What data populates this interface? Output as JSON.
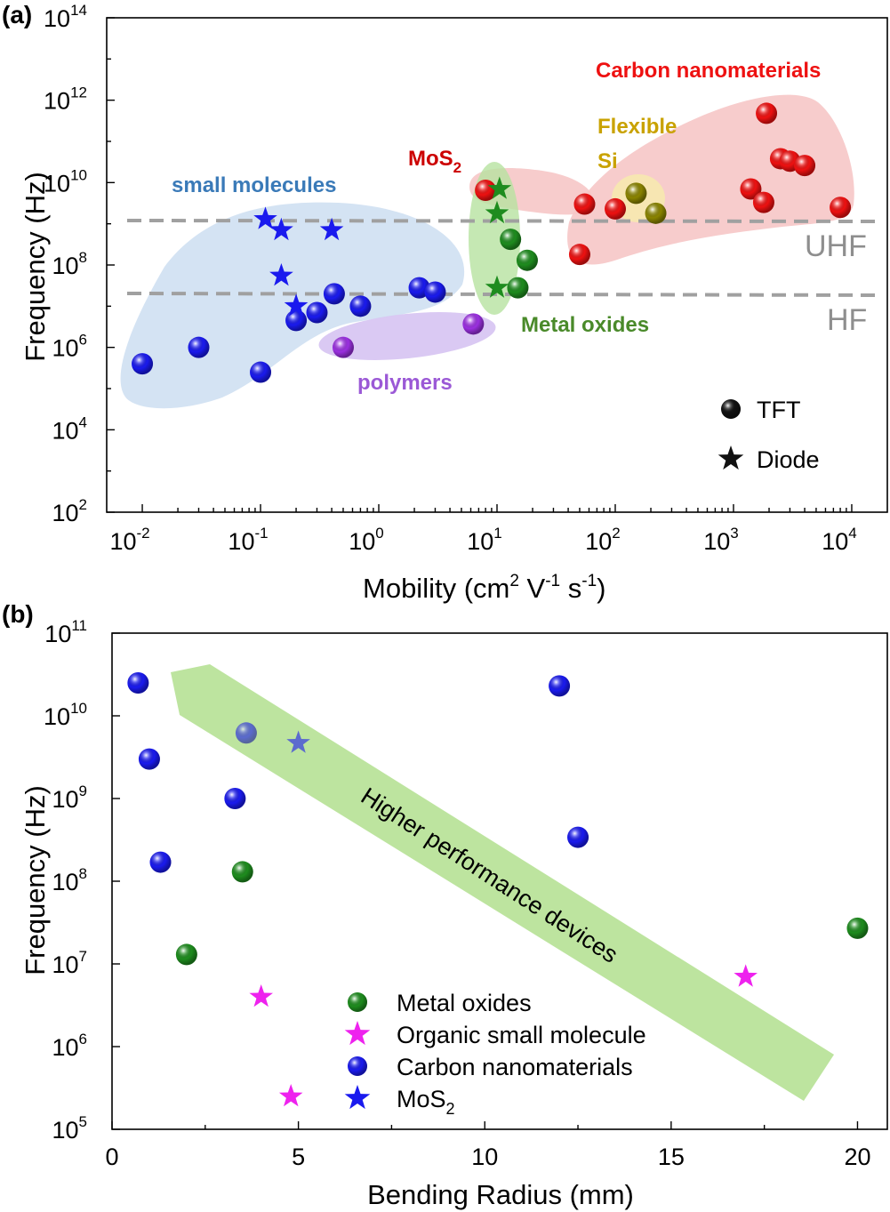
{
  "figure": {
    "panel_a_label": "(a)",
    "panel_b_label": "(b)"
  },
  "chart_data": [
    {
      "type": "scatter",
      "panel": "(a)",
      "xlabel": "Mobility (cm² V⁻¹ s⁻¹)",
      "ylabel": "Frequency (Hz)",
      "xscale": "log",
      "yscale": "log",
      "xlim": [
        0.005,
        20000
      ],
      "ylim": [
        100,
        100000000000000
      ],
      "x_ticks": [
        {
          "base": "10",
          "exp": "-2",
          "value": 0.01
        },
        {
          "base": "10",
          "exp": "-1",
          "value": 0.1
        },
        {
          "base": "10",
          "exp": "0",
          "value": 1
        },
        {
          "base": "10",
          "exp": "1",
          "value": 10
        },
        {
          "base": "10",
          "exp": "2",
          "value": 100
        },
        {
          "base": "10",
          "exp": "3",
          "value": 1000
        },
        {
          "base": "10",
          "exp": "4",
          "value": 10000
        }
      ],
      "y_ticks": [
        {
          "base": "10",
          "exp": "2",
          "value": 100
        },
        {
          "base": "10",
          "exp": "4",
          "value": 10000
        },
        {
          "base": "10",
          "exp": "6",
          "value": 1000000
        },
        {
          "base": "10",
          "exp": "8",
          "value": 100000000
        },
        {
          "base": "10",
          "exp": "10",
          "value": 10000000000
        },
        {
          "base": "10",
          "exp": "12",
          "value": 1000000000000
        },
        {
          "base": "10",
          "exp": "14",
          "value": 100000000000000
        }
      ],
      "reference_lines": [
        {
          "label": "UHF",
          "y": 1000000000,
          "color": "#9e9e9e"
        },
        {
          "label": "HF",
          "y": 18000000,
          "color": "#9e9e9e"
        }
      ],
      "regions": [
        {
          "label": "small molecules",
          "color": "#3a7ab8",
          "fill": "#cfe0f2"
        },
        {
          "label": "polymers",
          "color": "#9b59d6",
          "fill": "#d6c3f2"
        },
        {
          "label": "MoS",
          "label_sub": "2",
          "color": "#cc0000",
          "fill": "#f6c6c6"
        },
        {
          "label": "Metal oxides",
          "color": "#4a8a2a",
          "fill": "#b7e2a0"
        },
        {
          "label": "Flexible",
          "label2": "Si",
          "color": "#c9a200",
          "fill": "#f7e7b0"
        },
        {
          "label": "Carbon nanomaterials",
          "color": "#ee1111",
          "fill": "#f6c6c6"
        }
      ],
      "legend": {
        "placement": "bottom-right",
        "items": [
          {
            "label": "TFT",
            "marker": "circle",
            "color": "#111111"
          },
          {
            "label": "Diode",
            "marker": "star",
            "color": "#111111"
          }
        ]
      },
      "series": [
        {
          "group": "small molecules",
          "marker": "circle",
          "color": "#1a1aee",
          "points": [
            [
              0.01,
              400000
            ],
            [
              0.03,
              1000000
            ],
            [
              0.1,
              250000
            ],
            [
              0.2,
              4500000
            ],
            [
              0.3,
              7000000
            ],
            [
              0.42,
              20000000
            ],
            [
              0.7,
              10000000
            ],
            [
              2.2,
              28000000
            ],
            [
              3.0,
              22000000
            ]
          ]
        },
        {
          "group": "small molecules",
          "marker": "star",
          "color": "#1a1aee",
          "points": [
            [
              0.11,
              1300000000
            ],
            [
              0.15,
              700000000
            ],
            [
              0.4,
              700000000
            ],
            [
              0.15,
              55000000
            ],
            [
              0.2,
              10000000
            ]
          ]
        },
        {
          "group": "polymers",
          "marker": "circle",
          "color": "#9b30e0",
          "points": [
            [
              0.5,
              1000000
            ],
            [
              6.3,
              3700000
            ]
          ]
        },
        {
          "group": "MoS2",
          "marker": "circle",
          "color": "#ee1111",
          "points": [
            [
              8.0,
              6500000000
            ]
          ]
        },
        {
          "group": "Metal oxides",
          "marker": "circle",
          "color": "#1e8c1e",
          "points": [
            [
              13,
              420000000
            ],
            [
              18,
              130000000
            ],
            [
              15,
              28000000
            ]
          ]
        },
        {
          "group": "Metal oxides",
          "marker": "star",
          "color": "#1e8c1e",
          "points": [
            [
              10.5,
              7000000000
            ],
            [
              10,
              1800000000
            ],
            [
              10,
              28000000
            ]
          ]
        },
        {
          "group": "Flexible Si",
          "marker": "circle",
          "color": "#8a8400",
          "points": [
            [
              150,
              5500000000
            ],
            [
              220,
              1800000000
            ]
          ]
        },
        {
          "group": "Carbon nanomaterials",
          "marker": "circle",
          "color": "#ee1111",
          "points": [
            [
              55,
              3000000000
            ],
            [
              100,
              2300000000
            ],
            [
              50,
              180000000
            ],
            [
              1400,
              7000000000
            ],
            [
              1800,
              3300000000
            ],
            [
              1900,
              480000000000
            ],
            [
              2500,
              38000000000
            ],
            [
              3000,
              33000000000
            ],
            [
              4000,
              26000000000
            ],
            [
              8000,
              2500000000
            ]
          ]
        }
      ]
    },
    {
      "type": "scatter",
      "panel": "(b)",
      "xlabel": "Bending Radius (mm)",
      "ylabel": "Frequency (Hz)",
      "xscale": "linear",
      "yscale": "log",
      "xlim": [
        0,
        20.8
      ],
      "ylim": [
        100000,
        100000000000
      ],
      "x_ticks": [
        "0",
        "5",
        "10",
        "15",
        "20"
      ],
      "y_ticks": [
        {
          "base": "10",
          "exp": "5",
          "value": 100000
        },
        {
          "base": "10",
          "exp": "6",
          "value": 1000000
        },
        {
          "base": "10",
          "exp": "7",
          "value": 10000000
        },
        {
          "base": "10",
          "exp": "8",
          "value": 100000000
        },
        {
          "base": "10",
          "exp": "9",
          "value": 1000000000
        },
        {
          "base": "10",
          "exp": "10",
          "value": 10000000000
        },
        {
          "base": "10",
          "exp": "11",
          "value": 100000000000
        }
      ],
      "annotation": "Higher performance devices",
      "legend": {
        "placement": "bottom-center",
        "items": [
          {
            "label": "Metal oxides",
            "marker": "circle",
            "color": "#1e8c1e"
          },
          {
            "label": "Organic small molecule",
            "marker": "star",
            "color": "#ee22ee"
          },
          {
            "label": "Carbon nanomaterials",
            "marker": "circle",
            "color": "#1a1aee"
          },
          {
            "label": "MoS",
            "label_sub": "2",
            "marker": "star",
            "color": "#1a1aee"
          }
        ]
      },
      "series": [
        {
          "name": "Metal oxides",
          "marker": "circle",
          "color": "#1e8c1e",
          "points": [
            [
              3.5,
              130000000
            ],
            [
              2.0,
              13000000
            ],
            [
              20,
              27000000
            ]
          ]
        },
        {
          "name": "Organic small molecule",
          "marker": "star",
          "color": "#ee22ee",
          "points": [
            [
              4.0,
              4000000
            ],
            [
              4.8,
              250000
            ],
            [
              17,
              7000000
            ]
          ]
        },
        {
          "name": "Carbon nanomaterials",
          "marker": "circle",
          "color": "#1a1aee",
          "points": [
            [
              0.7,
              25000000000
            ],
            [
              1.0,
              3000000000
            ],
            [
              1.3,
              170000000
            ],
            [
              3.3,
              1000000000
            ],
            [
              3.6,
              6200000000
            ],
            [
              12,
              23000000000
            ],
            [
              12.5,
              340000000
            ]
          ]
        },
        {
          "name": "MoS2",
          "marker": "star",
          "color": "#1a1aee",
          "points": [
            [
              5.0,
              4700000000
            ]
          ]
        }
      ]
    }
  ]
}
